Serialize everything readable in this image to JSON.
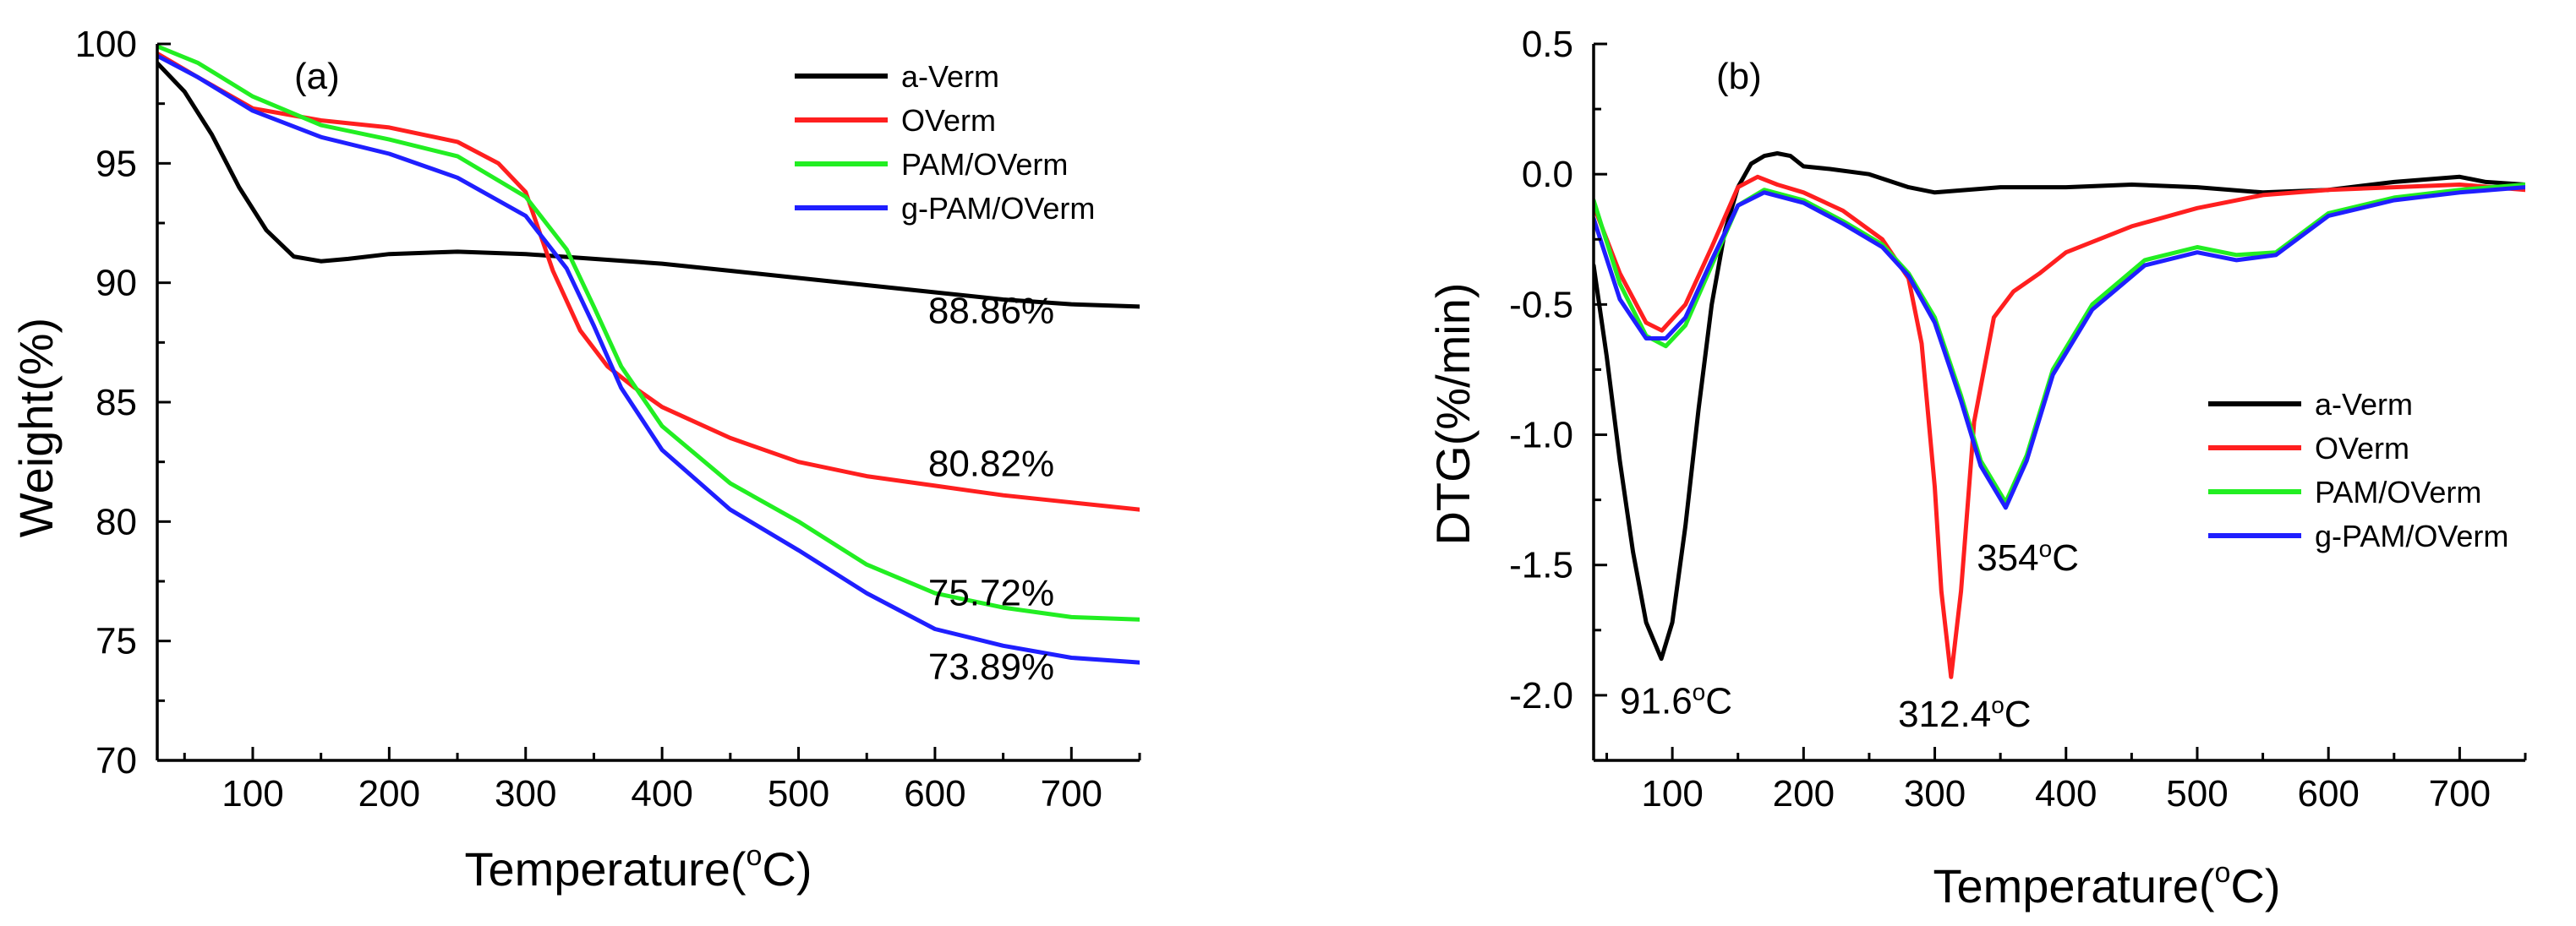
{
  "colors": {
    "a_verm": "#000000",
    "overm": "#ff1f1f",
    "pam_overm": "#22ee22",
    "g_pam_overm": "#1f1fff"
  },
  "chart_data": [
    {
      "type": "line",
      "panel_label": "(a)",
      "xlabel": "Temperature(°C)",
      "xlabel_parts": {
        "pre": "Temperature(",
        "sup": "o",
        "post": "C)"
      },
      "ylabel": "Weight(%)",
      "xlim": [
        30,
        750
      ],
      "ylim": [
        70,
        100
      ],
      "xticks": [
        100,
        200,
        300,
        400,
        500,
        600,
        700
      ],
      "yticks": [
        70,
        75,
        80,
        85,
        90,
        95,
        100
      ],
      "xtick_labels": [
        "100",
        "200",
        "300",
        "400",
        "500",
        "600",
        "700"
      ],
      "ytick_labels": [
        "70",
        "75",
        "80",
        "85",
        "90",
        "95",
        "100"
      ],
      "legend_position": "top-right",
      "series": [
        {
          "name": "a-Verm",
          "key": "a_verm",
          "x": [
            30,
            50,
            70,
            90,
            110,
            130,
            150,
            170,
            200,
            250,
            300,
            350,
            400,
            450,
            500,
            550,
            600,
            650,
            700,
            750
          ],
          "y": [
            99.2,
            98.0,
            96.2,
            94.0,
            92.2,
            91.1,
            90.9,
            91.0,
            91.2,
            91.3,
            91.2,
            91.0,
            90.8,
            90.5,
            90.2,
            89.9,
            89.6,
            89.3,
            89.1,
            89.0
          ]
        },
        {
          "name": "OVerm",
          "key": "overm",
          "x": [
            30,
            60,
            100,
            150,
            200,
            250,
            280,
            300,
            320,
            340,
            360,
            380,
            400,
            450,
            500,
            550,
            600,
            650,
            700,
            750
          ],
          "y": [
            99.6,
            98.6,
            97.3,
            96.8,
            96.5,
            95.9,
            95.0,
            93.8,
            90.5,
            88.0,
            86.5,
            85.6,
            84.8,
            83.5,
            82.5,
            81.9,
            81.5,
            81.1,
            80.8,
            80.5
          ]
        },
        {
          "name": "PAM/OVerm",
          "key": "pam_overm",
          "x": [
            30,
            60,
            100,
            150,
            200,
            250,
            300,
            330,
            350,
            370,
            400,
            450,
            500,
            550,
            600,
            650,
            700,
            750
          ],
          "y": [
            99.9,
            99.2,
            97.8,
            96.6,
            96.0,
            95.3,
            93.6,
            91.4,
            89.0,
            86.5,
            84.0,
            81.6,
            80.0,
            78.2,
            77.0,
            76.4,
            76.0,
            75.9
          ]
        },
        {
          "name": "g-PAM/OVerm",
          "key": "g_pam_overm",
          "x": [
            30,
            60,
            100,
            150,
            200,
            250,
            300,
            330,
            350,
            370,
            400,
            450,
            500,
            550,
            600,
            650,
            700,
            750
          ],
          "y": [
            99.5,
            98.6,
            97.2,
            96.1,
            95.4,
            94.4,
            92.8,
            90.6,
            88.2,
            85.6,
            83.0,
            80.5,
            78.8,
            77.0,
            75.5,
            74.8,
            74.3,
            74.1
          ]
        }
      ],
      "annotations": [
        {
          "text": "88.86%",
          "x": 595,
          "y": 88.3
        },
        {
          "text": "80.82%",
          "x": 595,
          "y": 81.9
        },
        {
          "text": "75.72%",
          "x": 595,
          "y": 76.5
        },
        {
          "text": "73.89%",
          "x": 595,
          "y": 73.4
        }
      ]
    },
    {
      "type": "line",
      "panel_label": "(b)",
      "xlabel": "Temperature(°C)",
      "xlabel_parts": {
        "pre": "Temperature(",
        "sup": "o",
        "post": "C)"
      },
      "ylabel": "DTG(%/min)",
      "xlim": [
        40,
        750
      ],
      "ylim": [
        -2.25,
        0.5
      ],
      "xticks": [
        100,
        200,
        300,
        400,
        500,
        600,
        700
      ],
      "yticks": [
        -2.0,
        -1.5,
        -1.0,
        -0.5,
        0.0,
        0.5
      ],
      "xtick_labels": [
        "100",
        "200",
        "300",
        "400",
        "500",
        "600",
        "700"
      ],
      "ytick_labels": [
        "-2.0",
        "-1.5",
        "-1.0",
        "-0.5",
        "0.0",
        "0.5"
      ],
      "legend_position": "center-right",
      "series": [
        {
          "name": "a-Verm",
          "key": "a_verm",
          "x": [
            40,
            50,
            60,
            70,
            80,
            91.6,
            100,
            110,
            120,
            130,
            140,
            150,
            160,
            170,
            180,
            190,
            200,
            220,
            250,
            280,
            300,
            350,
            400,
            450,
            500,
            550,
            600,
            650,
            700,
            720,
            750
          ],
          "y": [
            -0.35,
            -0.7,
            -1.1,
            -1.45,
            -1.72,
            -1.86,
            -1.72,
            -1.35,
            -0.9,
            -0.5,
            -0.22,
            -0.05,
            0.04,
            0.07,
            0.08,
            0.07,
            0.03,
            0.02,
            0.0,
            -0.05,
            -0.07,
            -0.05,
            -0.05,
            -0.04,
            -0.05,
            -0.07,
            -0.06,
            -0.03,
            -0.01,
            -0.03,
            -0.04
          ]
        },
        {
          "name": "OVerm",
          "key": "overm",
          "x": [
            40,
            60,
            80,
            92,
            110,
            130,
            150,
            165,
            180,
            200,
            230,
            260,
            280,
            290,
            300,
            305,
            312.4,
            320,
            330,
            345,
            360,
            380,
            400,
            450,
            500,
            550,
            600,
            650,
            700,
            750
          ],
          "y": [
            -0.12,
            -0.38,
            -0.57,
            -0.6,
            -0.5,
            -0.28,
            -0.05,
            -0.01,
            -0.04,
            -0.07,
            -0.14,
            -0.25,
            -0.4,
            -0.65,
            -1.2,
            -1.6,
            -1.93,
            -1.6,
            -0.95,
            -0.55,
            -0.45,
            -0.38,
            -0.3,
            -0.2,
            -0.13,
            -0.08,
            -0.06,
            -0.05,
            -0.04,
            -0.06
          ]
        },
        {
          "name": "PAM/OVerm",
          "key": "pam_overm",
          "x": [
            40,
            60,
            80,
            95,
            110,
            130,
            150,
            170,
            200,
            230,
            260,
            280,
            300,
            320,
            335,
            354,
            370,
            390,
            420,
            460,
            500,
            530,
            560,
            600,
            650,
            700,
            750
          ],
          "y": [
            -0.1,
            -0.42,
            -0.62,
            -0.66,
            -0.58,
            -0.35,
            -0.12,
            -0.06,
            -0.1,
            -0.18,
            -0.27,
            -0.38,
            -0.55,
            -0.85,
            -1.1,
            -1.26,
            -1.08,
            -0.75,
            -0.5,
            -0.33,
            -0.28,
            -0.31,
            -0.3,
            -0.15,
            -0.09,
            -0.06,
            -0.04
          ]
        },
        {
          "name": "g-PAM/OVerm",
          "key": "g_pam_overm",
          "x": [
            40,
            60,
            80,
            95,
            110,
            130,
            150,
            170,
            200,
            230,
            260,
            280,
            300,
            320,
            335,
            354,
            370,
            390,
            420,
            460,
            500,
            530,
            560,
            600,
            650,
            700,
            750
          ],
          "y": [
            -0.17,
            -0.48,
            -0.63,
            -0.63,
            -0.55,
            -0.33,
            -0.12,
            -0.07,
            -0.11,
            -0.19,
            -0.28,
            -0.39,
            -0.57,
            -0.87,
            -1.12,
            -1.28,
            -1.1,
            -0.77,
            -0.52,
            -0.35,
            -0.3,
            -0.33,
            -0.31,
            -0.16,
            -0.1,
            -0.07,
            -0.05
          ]
        }
      ],
      "annotations": [
        {
          "text": "91.6oC",
          "pre": "91.6",
          "sup": "o",
          "post": "C",
          "x": 60,
          "y": -2.07
        },
        {
          "text": "312.4oC",
          "pre": "312.4",
          "sup": "o",
          "post": "C",
          "x": 272,
          "y": -2.12
        },
        {
          "text": "354oC",
          "pre": "354",
          "sup": "o",
          "post": "C",
          "x": 332,
          "y": -1.52
        }
      ]
    }
  ]
}
